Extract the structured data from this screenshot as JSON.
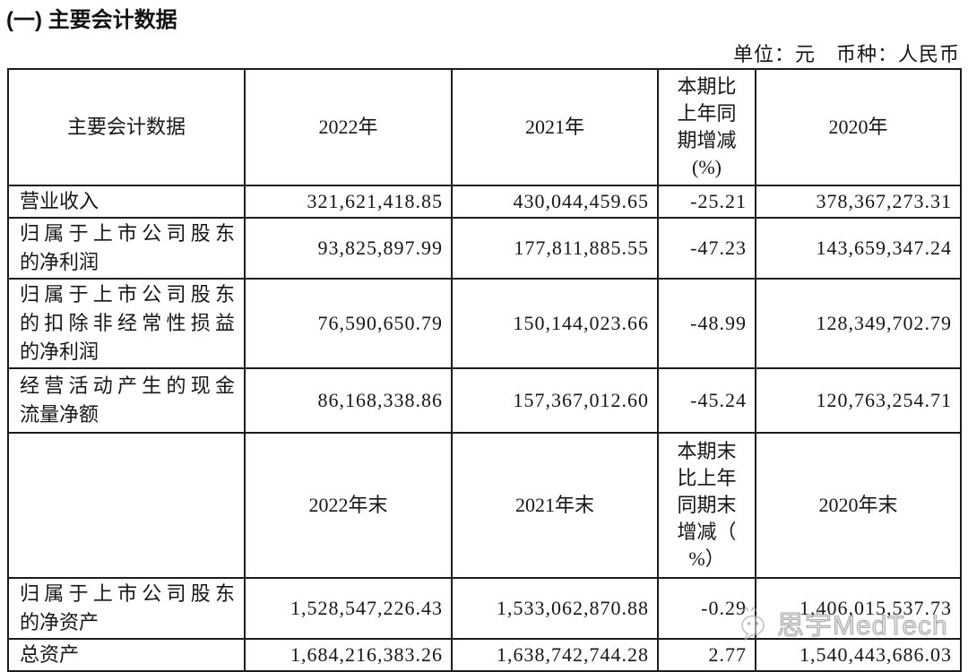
{
  "page": {
    "title": "(一) 主要会计数据",
    "unit_note": "单位：元　币种：人民币"
  },
  "table": {
    "period_header": {
      "metric": "主要会计数据",
      "cols": [
        "2022年",
        "2021年",
        "本期比\n上年同\n期增减\n(%)",
        "2020年"
      ]
    },
    "period_rows": [
      {
        "label": "营业收入",
        "values": [
          "321,621,418.85",
          "430,044,459.65",
          "-25.21",
          "378,367,273.31"
        ]
      },
      {
        "label": "归属于上市公司股东\n的净利润",
        "values": [
          "93,825,897.99",
          "177,811,885.55",
          "-47.23",
          "143,659,347.24"
        ]
      },
      {
        "label": "归属于上市公司股东\n的扣除非经常性损益\n的净利润",
        "values": [
          "76,590,650.79",
          "150,144,023.66",
          "-48.99",
          "128,349,702.79"
        ]
      },
      {
        "label": "经营活动产生的现金\n流量净额",
        "values": [
          "86,168,338.86",
          "157,367,012.60",
          "-45.24",
          "120,763,254.71"
        ]
      }
    ],
    "point_header": {
      "metric": "",
      "cols": [
        "2022年末",
        "2021年末",
        "本期末\n比上年\n同期末\n增减（\n%）",
        "2020年末"
      ]
    },
    "point_rows": [
      {
        "label": "归属于上市公司股东\n的净资产",
        "values": [
          "1,528,547,226.43",
          "1,533,062,870.88",
          "-0.29",
          "1,406,015,537.73"
        ]
      },
      {
        "label": "总资产",
        "values": [
          "1,684,216,383.26",
          "1,638,742,744.28",
          "2.77",
          "1,540,443,686.03"
        ]
      }
    ]
  },
  "watermark": {
    "text": "思宇MedTech",
    "icon": "wechat-icon",
    "color": "#a9a9a9"
  }
}
